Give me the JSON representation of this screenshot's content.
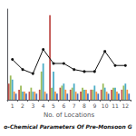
{
  "chart_data": {
    "type": "bar",
    "title": "o-Chemical Parameters Of Pre-Monsoon G",
    "xlabel": "No. of Locations",
    "categories": [
      "1",
      "2",
      "3",
      "4",
      "5",
      "6",
      "7",
      "8",
      "9",
      "10",
      "11",
      "12"
    ],
    "series": [
      {
        "type": "bar",
        "color": "#c0504d",
        "values": [
          8,
          5,
          4,
          5,
          42,
          6,
          5,
          4,
          5,
          5,
          5,
          5
        ]
      },
      {
        "type": "bar",
        "color": "#9bbb59",
        "values": [
          12,
          7,
          6,
          14,
          6,
          7,
          6,
          6,
          5,
          8,
          6,
          7
        ]
      },
      {
        "type": "bar",
        "color": "#4bacc6",
        "values": [
          10,
          4,
          4,
          18,
          14,
          8,
          8,
          5,
          7,
          6,
          6,
          8
        ]
      },
      {
        "type": "bar",
        "color": "#f79646",
        "values": [
          4,
          4,
          4,
          4,
          4,
          5,
          4,
          5,
          4,
          4,
          4,
          5
        ]
      },
      {
        "type": "bar",
        "color": "#4472c4",
        "values": [
          3,
          3,
          3,
          3,
          3,
          3,
          3,
          3,
          3,
          3,
          3,
          3
        ]
      },
      {
        "type": "line",
        "color": "#111111",
        "marker": "circle",
        "line_style": "solid",
        "values": [
          20,
          15,
          13,
          25,
          18,
          18,
          15,
          14,
          14,
          24,
          17,
          17
        ]
      }
    ],
    "ylim": [
      0,
      45
    ],
    "yticks": [],
    "grid": false,
    "tick_labels": "x"
  }
}
